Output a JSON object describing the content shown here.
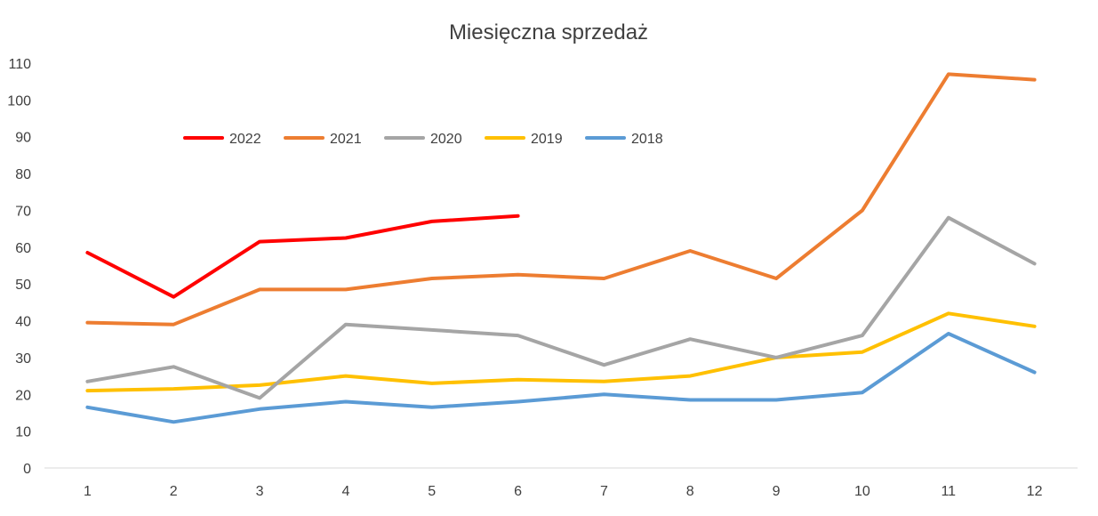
{
  "chart_data": {
    "type": "line",
    "title": "Miesięczna sprzedaż",
    "xlabel": "",
    "ylabel": "",
    "x": [
      1,
      2,
      3,
      4,
      5,
      6,
      7,
      8,
      9,
      10,
      11,
      12
    ],
    "ylim": [
      0,
      110
    ],
    "yticks": [
      0,
      10,
      20,
      30,
      40,
      50,
      60,
      70,
      80,
      90,
      100,
      110
    ],
    "grid": false,
    "legend_position": "top-left",
    "series": [
      {
        "name": "2022",
        "color": "#FF0000",
        "values": [
          58.5,
          46.5,
          61.5,
          62.5,
          67,
          68.5,
          null,
          null,
          null,
          null,
          null,
          null
        ]
      },
      {
        "name": "2021",
        "color": "#ED7D31",
        "values": [
          39.5,
          39,
          48.5,
          48.5,
          51.5,
          52.5,
          51.5,
          59,
          51.5,
          70,
          107,
          105.5
        ]
      },
      {
        "name": "2020",
        "color": "#A5A5A5",
        "values": [
          23.5,
          27.5,
          19,
          39,
          37.5,
          36,
          28,
          35,
          30,
          36,
          68,
          55.5
        ]
      },
      {
        "name": "2019",
        "color": "#FFC000",
        "values": [
          21,
          21.5,
          22.5,
          25,
          23,
          24,
          23.5,
          25,
          30,
          31.5,
          42,
          38.5
        ]
      },
      {
        "name": "2018",
        "color": "#5B9BD5",
        "values": [
          16.5,
          12.5,
          16,
          18,
          16.5,
          18,
          20,
          18.5,
          18.5,
          20.5,
          36.5,
          26
        ]
      }
    ]
  }
}
